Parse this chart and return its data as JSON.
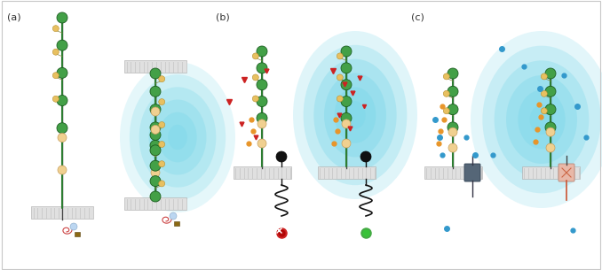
{
  "background_color": "#ffffff",
  "border_color": "#c8c8c8",
  "panel_labels": [
    "(a)",
    "(b)",
    "(c)"
  ],
  "figsize": [
    6.78,
    3.05
  ],
  "dpi": 100,
  "ncam_stem_color": "#2d7d32",
  "ncam_ig_color": "#43a047",
  "ncam_ig_edge": "#1b5e20",
  "ncam_fn_color": "#f0d090",
  "ncam_fn_edge": "#c8a060",
  "glow_cyan": "#7dd8e8",
  "red_color": "#cc2222",
  "blue_color": "#3399cc",
  "orange_color": "#e8952a",
  "black_color": "#111111",
  "green_ball_color": "#44aa44",
  "membrane_face": "#e0e0e0",
  "membrane_line": "#bbbbbb",
  "gray_receptor_color": "#555566",
  "pink_receptor_color": "#e8b0a0"
}
